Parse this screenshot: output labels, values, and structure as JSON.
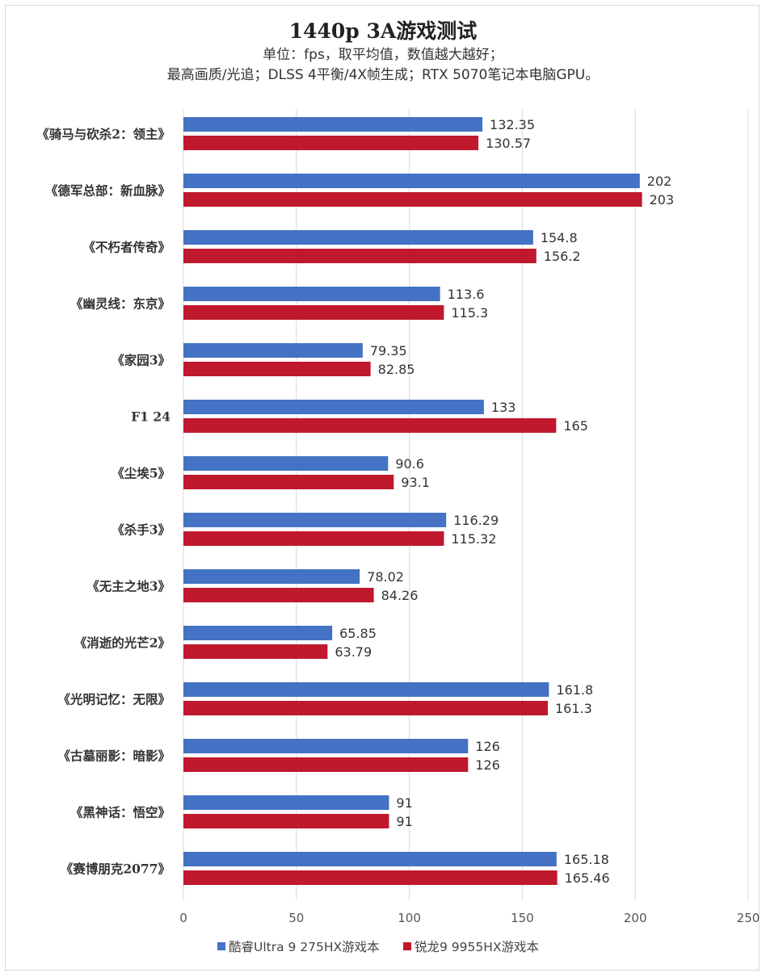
{
  "chart_data": {
    "type": "bar",
    "orientation": "horizontal",
    "title": "1440p 3A游戏测试",
    "subtitle_lines": [
      "单位：fps，取平均值，数值越大越好；",
      "最高画质/光追；DLSS 4平衡/4X帧生成；RTX 5070笔记本电脑GPU。"
    ],
    "categories": [
      "《骑马与砍杀2：领主》",
      "《德军总部：新血脉》",
      "《不朽者传奇》",
      "《幽灵线：东京》",
      "《家园3》",
      "F1 24",
      "《尘埃5》",
      "《杀手3》",
      "《无主之地3》",
      "《消逝的光芒2》",
      "《光明记忆：无限》",
      "《古墓丽影：暗影》",
      "《黑神话：悟空》",
      "《赛博朋克2077》"
    ],
    "series": [
      {
        "name": "酷睿Ultra 9 275HX游戏本",
        "color": "#4472c4",
        "values": [
          132.35,
          202,
          154.8,
          113.6,
          79.35,
          133,
          90.6,
          116.29,
          78.02,
          65.85,
          161.8,
          126,
          91,
          165.18
        ],
        "labels": [
          "132.35",
          "202",
          "154.8",
          "113.6",
          "79.35",
          "133",
          "90.6",
          "116.29",
          "78.02",
          "65.85",
          "161.8",
          "126",
          "91",
          "165.18"
        ]
      },
      {
        "name": "锐龙9 9955HX游戏本",
        "color": "#c0182d",
        "values": [
          130.57,
          203,
          156.2,
          115.3,
          82.85,
          165,
          93.1,
          115.32,
          84.26,
          63.79,
          161.3,
          126,
          91,
          165.46
        ],
        "labels": [
          "130.57",
          "203",
          "156.2",
          "115.3",
          "82.85",
          "165",
          "93.1",
          "115.32",
          "84.26",
          "63.79",
          "161.3",
          "126",
          "91",
          "165.46"
        ]
      }
    ],
    "xlim": [
      0,
      250
    ],
    "xticks": [
      "0",
      "50",
      "100",
      "150",
      "200",
      "250"
    ],
    "xtick_values": [
      0,
      50,
      100,
      150,
      200,
      250
    ],
    "grid": true,
    "legend_position": "bottom",
    "gridline_color": "#d9d9d9"
  }
}
